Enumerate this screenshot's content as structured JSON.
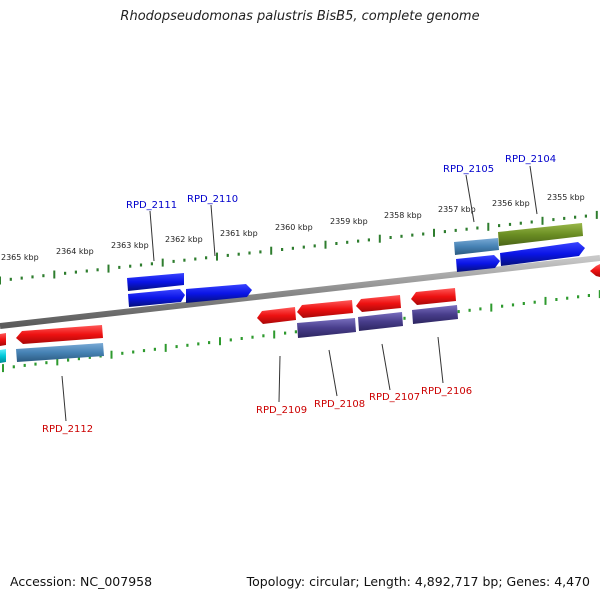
{
  "title": "Rhodopseudomonas palustris BisB5, complete genome",
  "footer": {
    "accession": "Accession: NC_007958",
    "summary": "Topology: circular; Length: 4,892,717 bp; Genes: 4,470"
  },
  "colors": {
    "backbone": "#888888",
    "tick_upper": "#2e7d2e",
    "tick_lower": "#2e9a2e",
    "label_forward": "#0000cc",
    "label_reverse": "#cc0000",
    "gene_forward": "#0a14e6",
    "gene_reverse": "#ee1111",
    "cds_forward_steelblue": "#4682b4",
    "cds_forward_olive": "#6b8e23",
    "cds_reverse_purple": "#483d8b",
    "cds_reverse_cyan": "#00c8d8"
  },
  "kbp_labels": [
    "2365 kbp",
    "2364 kbp",
    "2363 kbp",
    "2362 kbp",
    "2361 kbp",
    "2360 kbp",
    "2359 kbp",
    "2358 kbp",
    "2357 kbp",
    "2356 kbp",
    "2355 kbp"
  ],
  "forward_genes": [
    "RPD_2111",
    "RPD_2110",
    "RPD_2105",
    "RPD_2104"
  ],
  "reverse_genes": [
    "RPD_2112",
    "RPD_2109",
    "RPD_2108",
    "RPD_2107",
    "RPD_2106"
  ]
}
